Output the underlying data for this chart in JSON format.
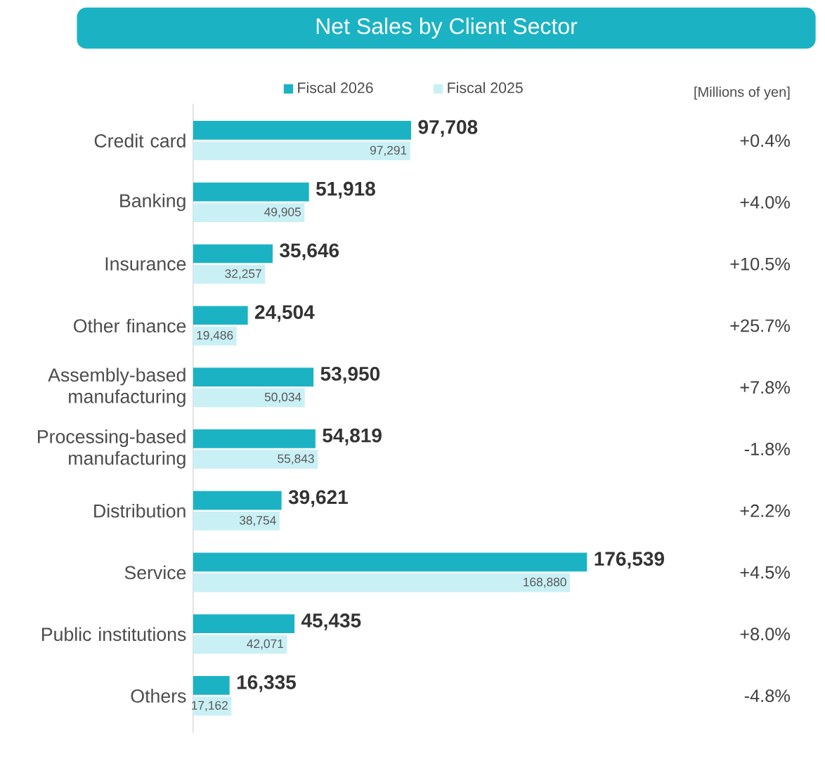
{
  "chart_data": {
    "type": "bar",
    "orientation": "horizontal",
    "title": "Net Sales by Client Sector",
    "categories": [
      "Credit card",
      "Banking",
      "Insurance",
      "Other finance",
      "Assembly-based manufacturing",
      "Processing-based manufacturing",
      "Distribution",
      "Service",
      "Public institutions",
      "Others"
    ],
    "series": [
      {
        "name": "Fiscal 2026",
        "color": "#1bb3c3",
        "values": [
          97708,
          51918,
          35646,
          24504,
          53950,
          54819,
          39621,
          176539,
          45435,
          16335
        ],
        "value_labels": [
          "97,708",
          "51,918",
          "35,646",
          "24,504",
          "53,950",
          "54,819",
          "39,621",
          "176,539",
          "45,435",
          "16,335"
        ]
      },
      {
        "name": "Fiscal 2025",
        "color": "#c9f0f5",
        "values": [
          97291,
          49905,
          32257,
          19486,
          50034,
          55843,
          38754,
          168880,
          42071,
          17162
        ],
        "value_labels": [
          "97,291",
          "49,905",
          "32,257",
          "19,486",
          "50,034",
          "55,843",
          "38,754",
          "168,880",
          "42,071",
          "17,162"
        ]
      }
    ],
    "legend": "top",
    "annotations": [
      "[Millions of yen]",
      "+0.4%",
      "+4.0%",
      "+10.5%",
      "+25.7%",
      "+7.8%",
      "-1.8%",
      "+2.2%",
      "+4.5%",
      "+8.0%",
      "-4.8%"
    ]
  }
}
